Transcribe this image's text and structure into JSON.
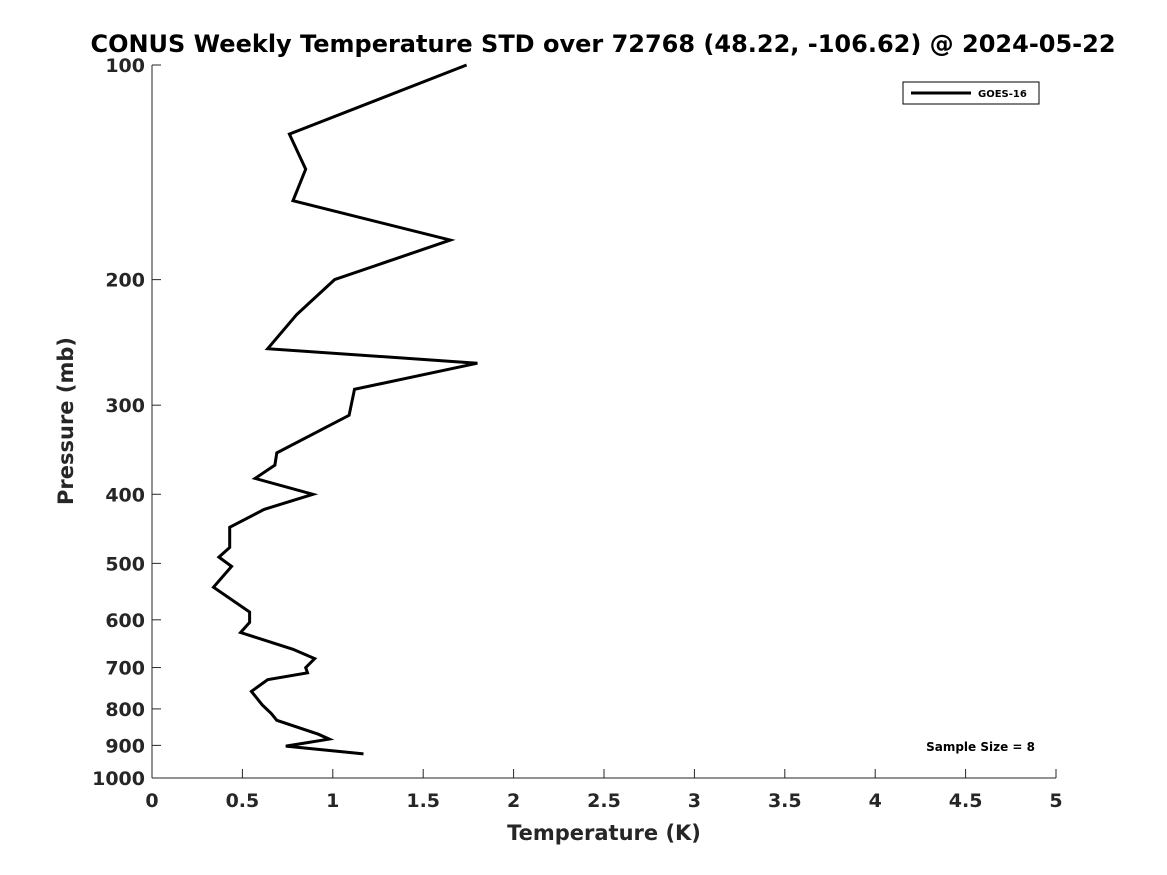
{
  "chart_data": {
    "type": "line",
    "title": "CONUS Weekly Temperature STD over 72768 (48.22, -106.62) @ 2024-05-22",
    "xlabel": "Temperature (K)",
    "ylabel": "Pressure (mb)",
    "xlim": [
      0,
      5
    ],
    "ylim": [
      1000,
      100
    ],
    "yscale": "log",
    "y_reversed": true,
    "xticks": [
      0,
      0.5,
      1,
      1.5,
      2,
      2.5,
      3,
      3.5,
      4,
      4.5,
      5
    ],
    "xtick_labels": [
      "0",
      "0.5",
      "1",
      "1.5",
      "2",
      "2.5",
      "3",
      "3.5",
      "4",
      "4.5",
      "5"
    ],
    "yticks": [
      100,
      200,
      300,
      400,
      500,
      600,
      700,
      800,
      900,
      1000
    ],
    "ytick_labels": [
      "100",
      "200",
      "300",
      "400",
      "500",
      "600",
      "700",
      "800",
      "900",
      "1000"
    ],
    "grid": false,
    "legend_position": "top-right",
    "annotation": "Sample Size = 8",
    "series": [
      {
        "name": "GOES-16",
        "color": "#000000",
        "points": [
          {
            "x": 1.74,
            "y": 100
          },
          {
            "x": 0.76,
            "y": 125
          },
          {
            "x": 0.85,
            "y": 140
          },
          {
            "x": 0.78,
            "y": 155
          },
          {
            "x": 1.65,
            "y": 176
          },
          {
            "x": 1.01,
            "y": 200
          },
          {
            "x": 0.8,
            "y": 224
          },
          {
            "x": 0.64,
            "y": 250
          },
          {
            "x": 1.8,
            "y": 262
          },
          {
            "x": 1.12,
            "y": 285
          },
          {
            "x": 1.09,
            "y": 310
          },
          {
            "x": 0.69,
            "y": 350
          },
          {
            "x": 0.68,
            "y": 364
          },
          {
            "x": 0.57,
            "y": 380
          },
          {
            "x": 0.89,
            "y": 400
          },
          {
            "x": 0.62,
            "y": 420
          },
          {
            "x": 0.43,
            "y": 445
          },
          {
            "x": 0.43,
            "y": 475
          },
          {
            "x": 0.37,
            "y": 490
          },
          {
            "x": 0.44,
            "y": 505
          },
          {
            "x": 0.34,
            "y": 540
          },
          {
            "x": 0.54,
            "y": 585
          },
          {
            "x": 0.54,
            "y": 605
          },
          {
            "x": 0.49,
            "y": 625
          },
          {
            "x": 0.78,
            "y": 660
          },
          {
            "x": 0.9,
            "y": 680
          },
          {
            "x": 0.85,
            "y": 700
          },
          {
            "x": 0.86,
            "y": 712
          },
          {
            "x": 0.64,
            "y": 728
          },
          {
            "x": 0.55,
            "y": 756
          },
          {
            "x": 0.61,
            "y": 790
          },
          {
            "x": 0.66,
            "y": 812
          },
          {
            "x": 0.69,
            "y": 830
          },
          {
            "x": 0.92,
            "y": 868
          },
          {
            "x": 0.98,
            "y": 882
          },
          {
            "x": 0.74,
            "y": 902
          },
          {
            "x": 1.17,
            "y": 925
          }
        ]
      }
    ]
  }
}
